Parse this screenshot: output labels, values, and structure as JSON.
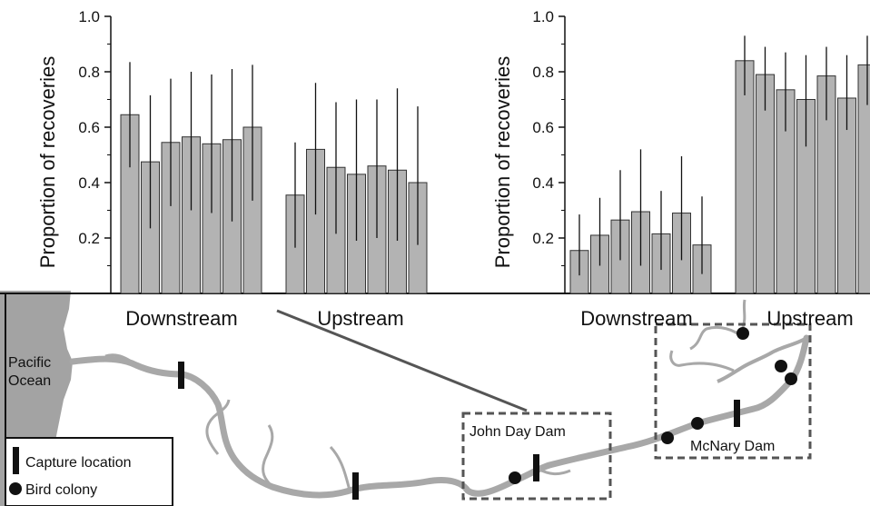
{
  "chart_data": [
    {
      "type": "bar",
      "ylabel": "Proportion of recoveries",
      "yticks": [
        "0.2",
        "0.4",
        "0.6",
        "0.8",
        "1.0"
      ],
      "ylim": [
        0,
        1.0
      ],
      "groups": [
        {
          "label": "Downstream",
          "values": [
            0.645,
            0.475,
            0.545,
            0.565,
            0.54,
            0.555,
            0.6
          ],
          "err_low": [
            0.455,
            0.235,
            0.315,
            0.3,
            0.29,
            0.26,
            0.335
          ],
          "err_high": [
            0.835,
            0.715,
            0.775,
            0.8,
            0.79,
            0.81,
            0.825
          ]
        },
        {
          "label": "Upstream",
          "values": [
            0.355,
            0.52,
            0.455,
            0.43,
            0.46,
            0.445,
            0.4
          ],
          "err_low": [
            0.165,
            0.285,
            0.215,
            0.19,
            0.2,
            0.19,
            0.175
          ],
          "err_high": [
            0.545,
            0.76,
            0.69,
            0.7,
            0.7,
            0.74,
            0.675
          ]
        }
      ]
    },
    {
      "type": "bar",
      "ylabel": "Proportion of recoveries",
      "yticks": [
        "0.2",
        "0.4",
        "0.6",
        "0.8",
        "1.0"
      ],
      "ylim": [
        0,
        1.0
      ],
      "groups": [
        {
          "label": "Downstream",
          "values": [
            0.155,
            0.21,
            0.265,
            0.295,
            0.215,
            0.29,
            0.175
          ],
          "err_low": [
            0.065,
            0.1,
            0.12,
            0.1,
            0.085,
            0.12,
            0.07
          ],
          "err_high": [
            0.285,
            0.345,
            0.445,
            0.52,
            0.37,
            0.495,
            0.35
          ]
        },
        {
          "label": "Upstream",
          "values": [
            0.84,
            0.79,
            0.735,
            0.7,
            0.785,
            0.705,
            0.825
          ],
          "err_low": [
            0.715,
            0.66,
            0.585,
            0.53,
            0.625,
            0.59,
            0.68
          ],
          "err_high": [
            0.93,
            0.89,
            0.87,
            0.86,
            0.89,
            0.86,
            0.93
          ]
        }
      ]
    }
  ],
  "map": {
    "ocean_label": [
      "Pacific",
      "Ocean"
    ],
    "dam1_label": "John Day Dam",
    "dam2_label": "McNary Dam",
    "legend": {
      "capture": "Capture location",
      "colony": "Bird colony"
    }
  },
  "colors": {
    "bar": "#b3b3b3",
    "river": "#a8a8a8",
    "ocean": "#a3a3a3",
    "ink": "#111111",
    "zoom_line": "#555555"
  }
}
